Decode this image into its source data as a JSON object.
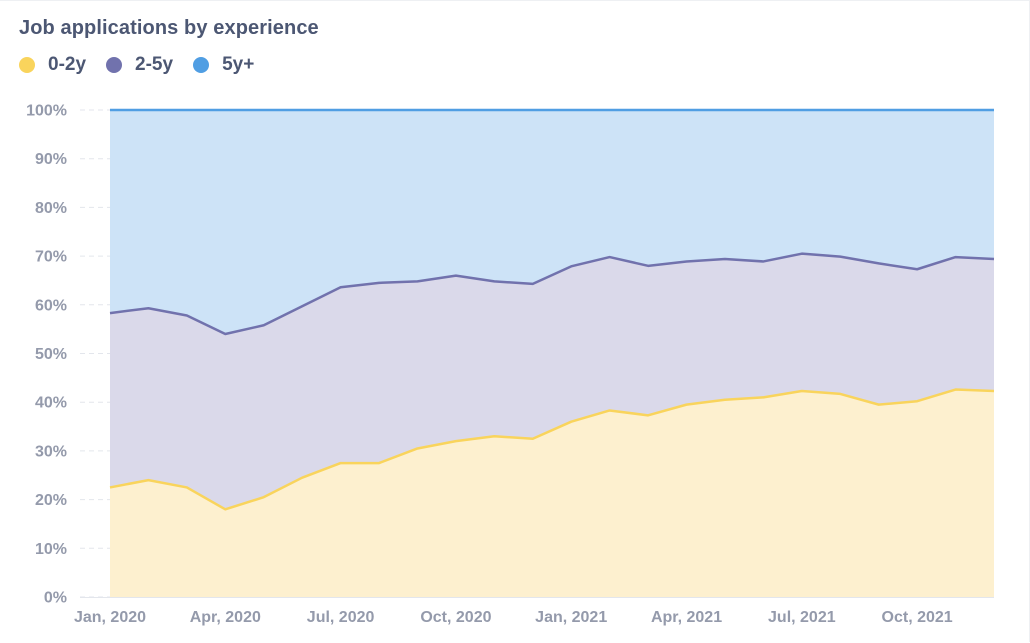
{
  "chart_data": {
    "type": "area",
    "stacking": "percent",
    "title": "Job applications by experience",
    "legend_position": "top-left",
    "x": [
      "Jan, 2020",
      "Feb, 2020",
      "Mar, 2020",
      "Apr, 2020",
      "May, 2020",
      "Jun, 2020",
      "Jul, 2020",
      "Aug, 2020",
      "Sep, 2020",
      "Oct, 2020",
      "Nov, 2020",
      "Dec, 2020",
      "Jan, 2021",
      "Feb, 2021",
      "Mar, 2021",
      "Apr, 2021",
      "May, 2021",
      "Jun, 2021",
      "Jul, 2021",
      "Aug, 2021",
      "Sep, 2021",
      "Oct, 2021",
      "Nov, 2021",
      "Dec, 2021"
    ],
    "x_tick_labels": [
      "Jan, 2020",
      "Apr, 2020",
      "Jul, 2020",
      "Oct, 2020",
      "Jan, 2021",
      "Apr, 2021",
      "Jul, 2021",
      "Oct, 2021"
    ],
    "y_ticks": [
      "0%",
      "10%",
      "20%",
      "30%",
      "40%",
      "50%",
      "60%",
      "70%",
      "80%",
      "90%",
      "100%"
    ],
    "ylim": [
      0,
      100
    ],
    "series": [
      {
        "name": "0-2y",
        "color": "#f9d45c",
        "fill": "#fdf0cf",
        "values": [
          22.5,
          24.0,
          22.5,
          18.0,
          20.5,
          24.5,
          27.5,
          27.5,
          30.5,
          32.0,
          33.0,
          32.5,
          36.0,
          38.3,
          37.3,
          39.5,
          40.5,
          41.0,
          42.3,
          41.7,
          39.5,
          40.2,
          42.6,
          42.3
        ]
      },
      {
        "name": "2-5y",
        "color": "#7172ad",
        "fill": "#dad9ea",
        "values": [
          35.8,
          35.3,
          35.3,
          36.0,
          35.3,
          35.2,
          36.1,
          37.0,
          34.3,
          34.0,
          31.8,
          31.8,
          31.9,
          31.5,
          30.7,
          29.4,
          28.9,
          27.9,
          28.2,
          28.2,
          29.0,
          27.1,
          27.2,
          27.1
        ]
      },
      {
        "name": "5y+",
        "color": "#509ee3",
        "fill": "#cde3f7",
        "values": [
          41.7,
          40.7,
          42.2,
          46.0,
          44.2,
          40.3,
          36.4,
          35.5,
          35.2,
          34.0,
          35.2,
          35.7,
          32.1,
          30.2,
          32.0,
          31.1,
          30.6,
          31.1,
          29.5,
          30.1,
          31.5,
          32.7,
          30.2,
          30.6
        ]
      }
    ]
  }
}
